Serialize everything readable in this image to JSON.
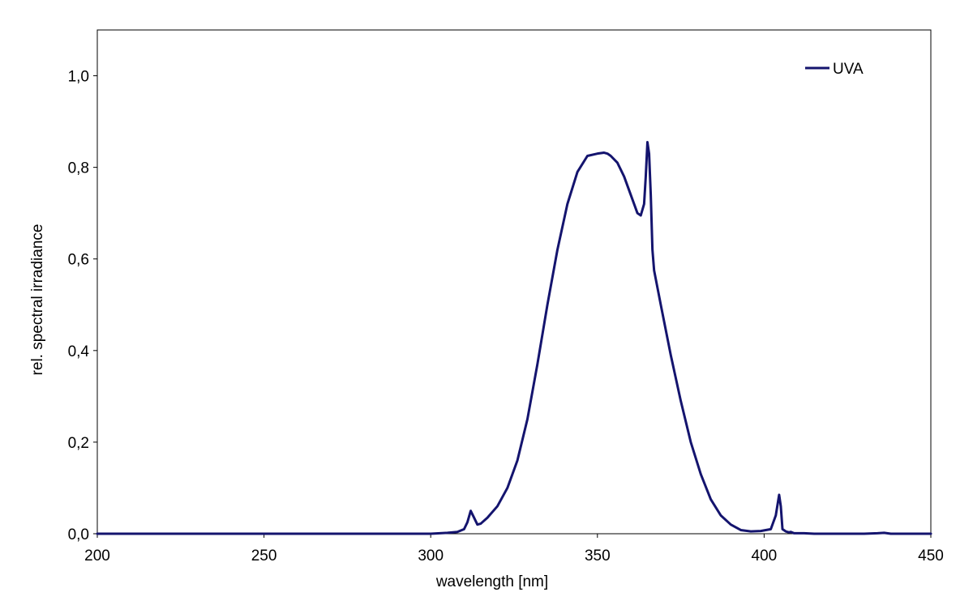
{
  "chart_data": {
    "type": "line",
    "title": "",
    "xlabel": "wavelength  [nm]",
    "ylabel": "rel. spectral irradiance",
    "xlim": [
      200,
      450
    ],
    "ylim": [
      0,
      1.1
    ],
    "x_ticks": [
      200,
      250,
      300,
      350,
      400,
      450
    ],
    "x_tick_labels": [
      "200",
      "250",
      "300",
      "350",
      "400",
      "450"
    ],
    "y_ticks": [
      0,
      0.2,
      0.4,
      0.6,
      0.8,
      1.0
    ],
    "y_tick_labels": [
      "0,0",
      "0,2",
      "0,4",
      "0,6",
      "0,8",
      "1,0"
    ],
    "grid": false,
    "legend_position": "top-right",
    "colors": {
      "series": "#14146e",
      "axis": "#000000"
    },
    "series": [
      {
        "name": "UVA",
        "x": [
          200,
          300,
          305,
          308,
          310,
          311,
          312,
          313,
          314,
          315,
          317,
          320,
          323,
          326,
          329,
          332,
          335,
          338,
          341,
          344,
          347,
          350,
          352,
          353,
          354,
          356,
          358,
          360,
          362,
          363,
          364,
          364.5,
          365,
          365.5,
          366,
          366.5,
          367,
          369,
          372,
          375,
          378,
          381,
          384,
          387,
          390,
          393,
          396,
          399,
          402,
          403.5,
          404.5,
          405,
          405.5,
          406.5,
          407.5,
          408,
          409,
          412,
          415,
          430,
          434,
          436,
          438,
          450
        ],
        "y": [
          0,
          0,
          0.002,
          0.004,
          0.01,
          0.025,
          0.05,
          0.035,
          0.02,
          0.022,
          0.035,
          0.06,
          0.1,
          0.16,
          0.25,
          0.37,
          0.5,
          0.62,
          0.72,
          0.79,
          0.825,
          0.83,
          0.832,
          0.83,
          0.825,
          0.81,
          0.78,
          0.74,
          0.7,
          0.695,
          0.72,
          0.78,
          0.855,
          0.83,
          0.74,
          0.62,
          0.575,
          0.5,
          0.39,
          0.29,
          0.2,
          0.13,
          0.075,
          0.04,
          0.02,
          0.008,
          0.005,
          0.006,
          0.01,
          0.04,
          0.085,
          0.06,
          0.01,
          0.005,
          0.003,
          0.004,
          0.001,
          0.001,
          0,
          0,
          0.001,
          0.002,
          0,
          0
        ]
      }
    ]
  }
}
